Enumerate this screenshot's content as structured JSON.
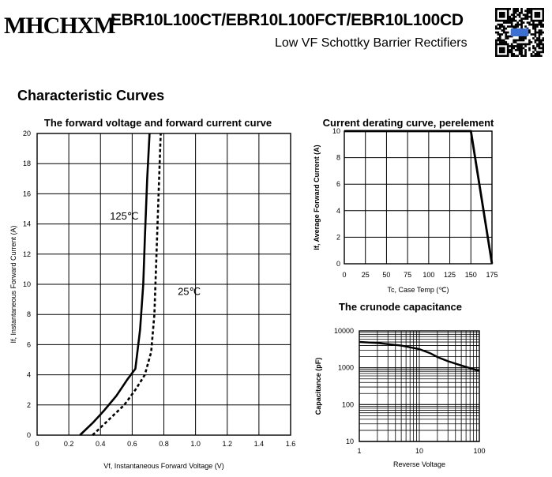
{
  "header": {
    "logo_text": "MHCHXM",
    "part_numbers": "EBR10L100CT/EBR10L100FCT/EBR10L100CD",
    "subtitle": "Low VF Schottky Barrier Rectifiers",
    "qr_icon": "qr-code-icon"
  },
  "section_title": "Characteristic Curves",
  "chart_data": [
    {
      "type": "line",
      "title": "The forward voltage and forward current curve",
      "xlabel": "Vf, Instantaneous Forward Voltage (V)",
      "ylabel": "If, Instantaneous Forward Current (A)",
      "xlim": [
        0,
        1.6
      ],
      "ylim": [
        0,
        20
      ],
      "xticks": [
        "0",
        "0.2",
        "0.4",
        "0.6",
        "0.8",
        "1.0",
        "1.2",
        "1.4",
        "1.6"
      ],
      "yticks": [
        "0",
        "2",
        "4",
        "6",
        "8",
        "10",
        "12",
        "14",
        "16",
        "18",
        "20"
      ],
      "grid": true,
      "series": [
        {
          "name": "125℃",
          "style": "solid",
          "color": "#000000",
          "x": [
            0.27,
            0.35,
            0.42,
            0.5,
            0.57,
            0.62,
            0.65,
            0.67,
            0.68,
            0.695,
            0.71
          ],
          "y": [
            0,
            0.8,
            1.6,
            2.6,
            3.7,
            4.4,
            7,
            10,
            13,
            17,
            20
          ]
        },
        {
          "name": "25℃",
          "style": "dashed",
          "color": "#000000",
          "x": [
            0.35,
            0.45,
            0.55,
            0.62,
            0.68,
            0.72,
            0.74,
            0.75,
            0.76,
            0.77,
            0.78
          ],
          "y": [
            0,
            1,
            2,
            3,
            4,
            5.5,
            8,
            11,
            14,
            17,
            20
          ]
        }
      ],
      "annotations": [
        {
          "text": "125℃",
          "x": 0.55,
          "y": 14.3
        },
        {
          "text": "25℃",
          "x": 0.96,
          "y": 9.3
        }
      ]
    },
    {
      "type": "line",
      "title": "Current derating curve, perelement",
      "xlabel": "Tc, Case Temp (℃)",
      "ylabel": "If, Average Forward Current (A)",
      "xlim": [
        0,
        175
      ],
      "ylim": [
        0,
        10
      ],
      "xticks": [
        "0",
        "25",
        "50",
        "75",
        "100",
        "125",
        "150",
        "175"
      ],
      "yticks": [
        "0",
        "2",
        "4",
        "6",
        "8",
        "10"
      ],
      "grid": true,
      "series": [
        {
          "x": [
            0,
            150,
            175
          ],
          "y": [
            10,
            10,
            0
          ],
          "color": "#000000"
        }
      ]
    },
    {
      "type": "line",
      "title": "The crunode capacitance",
      "xlabel": "Reverse Voltage",
      "ylabel": "Capacitance (pF)",
      "xscale": "log",
      "yscale": "log",
      "xlim": [
        1,
        100
      ],
      "ylim": [
        10,
        10000
      ],
      "xticks": [
        "1",
        "10",
        "100"
      ],
      "yticks": [
        "10",
        "100",
        "1000",
        "10000"
      ],
      "grid": true,
      "series": [
        {
          "x": [
            1,
            2,
            5,
            10,
            15,
            20,
            30,
            50,
            70,
            100
          ],
          "y": [
            5000,
            4700,
            4000,
            3200,
            2500,
            1950,
            1500,
            1150,
            980,
            820
          ],
          "color": "#000000"
        }
      ]
    }
  ]
}
